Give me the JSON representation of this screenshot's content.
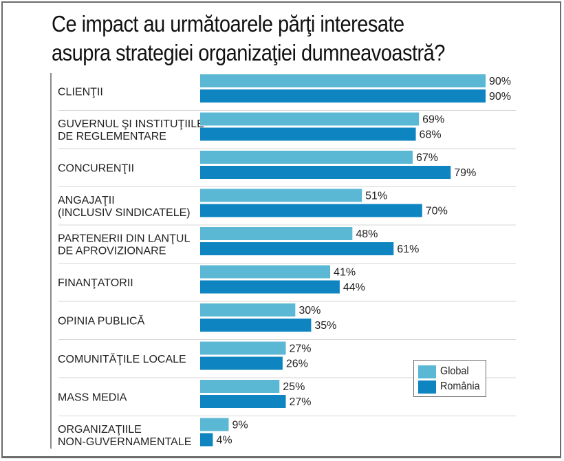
{
  "chart_data": {
    "type": "bar",
    "orientation": "horizontal",
    "title": "Ce impact au următoarele părţi interesate asupra strategiei organizaţiei dumneavoastră?",
    "title_lines": [
      "Ce impact au următoarele părţi interesate",
      "asupra strategiei organizaţiei dumneavoastră?"
    ],
    "categories": [
      [
        "CLIENŢII"
      ],
      [
        "GUVERNUL ŞI INSTITUŢIILE",
        "DE REGLEMENTARE"
      ],
      [
        "CONCURENŢII"
      ],
      [
        "ANGAJAŢII",
        "(INCLUSIV SINDICATELE)"
      ],
      [
        "PARTENERII DIN LANŢUL",
        "DE APROVIZIONARE"
      ],
      [
        "FINANŢATORII"
      ],
      [
        "OPINIA PUBLICĂ"
      ],
      [
        "COMUNITĂŢILE LOCALE"
      ],
      [
        "MASS MEDIA"
      ],
      [
        "ORGANIZAŢIILE",
        "NON-GUVERNAMENTALE"
      ]
    ],
    "series": [
      {
        "name": "Global",
        "color": "#5bb8d4",
        "values": [
          90,
          69,
          67,
          51,
          48,
          41,
          30,
          27,
          25,
          9
        ]
      },
      {
        "name": "România",
        "color": "#0e85c1",
        "values": [
          90,
          68,
          79,
          70,
          61,
          44,
          35,
          26,
          27,
          4
        ]
      }
    ],
    "value_suffix": "%",
    "xlim": [
      0,
      100
    ],
    "grid": false,
    "legend": {
      "position": "bottom-right",
      "entries": [
        "Global",
        "România"
      ]
    }
  }
}
